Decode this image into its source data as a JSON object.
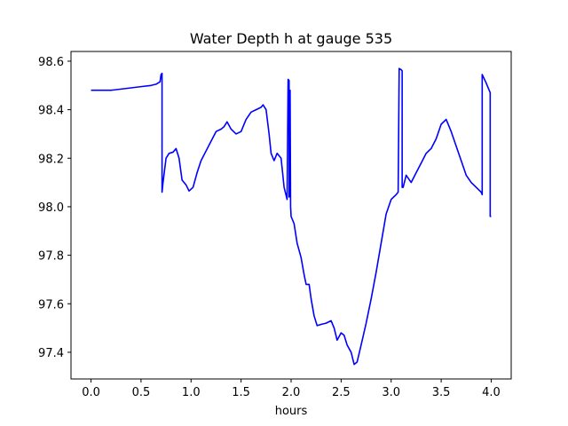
{
  "chart_data": {
    "type": "line",
    "title": "Water Depth h at gauge 535",
    "xlabel": "hours",
    "ylabel": "",
    "xlim": [
      -0.2,
      4.2
    ],
    "ylim": [
      97.29,
      98.64
    ],
    "xticks": [
      0.0,
      0.5,
      1.0,
      1.5,
      2.0,
      2.5,
      3.0,
      3.5,
      4.0
    ],
    "xtick_labels": [
      "0.0",
      "0.5",
      "1.0",
      "1.5",
      "2.0",
      "2.5",
      "3.0",
      "3.5",
      "4.0"
    ],
    "yticks": [
      97.4,
      97.6,
      97.8,
      98.0,
      98.2,
      98.4,
      98.6
    ],
    "ytick_labels": [
      "97.4",
      "97.6",
      "97.8",
      "98.0",
      "98.2",
      "98.4",
      "98.6"
    ],
    "grid": false,
    "legend": "none",
    "series": [
      {
        "color": "#0000ff",
        "x": [
          0.0,
          0.1,
          0.2,
          0.3,
          0.4,
          0.5,
          0.6,
          0.65,
          0.69,
          0.7,
          0.71,
          0.71,
          0.72,
          0.75,
          0.78,
          0.82,
          0.85,
          0.88,
          0.91,
          0.95,
          0.98,
          1.02,
          1.06,
          1.1,
          1.15,
          1.2,
          1.25,
          1.3,
          1.33,
          1.36,
          1.4,
          1.45,
          1.5,
          1.55,
          1.6,
          1.65,
          1.7,
          1.72,
          1.75,
          1.78,
          1.8,
          1.83,
          1.86,
          1.9,
          1.93,
          1.96,
          1.97,
          1.98,
          1.98,
          1.99,
          1.99,
          1.995,
          2.0,
          2.03,
          2.06,
          2.1,
          2.13,
          2.15,
          2.18,
          2.2,
          2.23,
          2.26,
          2.3,
          2.35,
          2.4,
          2.43,
          2.46,
          2.5,
          2.53,
          2.56,
          2.6,
          2.63,
          2.66,
          2.7,
          2.75,
          2.8,
          2.85,
          2.9,
          2.95,
          3.0,
          3.05,
          3.07,
          3.08,
          3.08,
          3.1,
          3.11,
          3.11,
          3.12,
          3.15,
          3.2,
          3.25,
          3.3,
          3.35,
          3.4,
          3.45,
          3.5,
          3.55,
          3.6,
          3.65,
          3.7,
          3.75,
          3.8,
          3.85,
          3.9,
          3.91,
          3.91,
          3.95,
          3.99,
          3.99,
          4.0
        ],
        "y": [
          98.48,
          98.48,
          98.48,
          98.485,
          98.49,
          98.495,
          98.5,
          98.505,
          98.515,
          98.545,
          98.55,
          98.06,
          98.1,
          98.2,
          98.22,
          98.225,
          98.24,
          98.2,
          98.11,
          98.09,
          98.065,
          98.08,
          98.14,
          98.19,
          98.23,
          98.27,
          98.31,
          98.32,
          98.33,
          98.35,
          98.32,
          98.3,
          98.31,
          98.36,
          98.39,
          98.4,
          98.41,
          98.42,
          98.4,
          98.3,
          98.22,
          98.19,
          98.22,
          98.2,
          98.08,
          98.03,
          98.525,
          98.52,
          98.04,
          98.05,
          98.48,
          98.0,
          97.96,
          97.93,
          97.85,
          97.79,
          97.72,
          97.68,
          97.68,
          97.62,
          97.55,
          97.51,
          97.515,
          97.52,
          97.53,
          97.5,
          97.45,
          97.48,
          97.47,
          97.43,
          97.4,
          97.35,
          97.36,
          97.43,
          97.52,
          97.62,
          97.73,
          97.85,
          97.97,
          98.03,
          98.05,
          98.06,
          98.56,
          98.57,
          98.565,
          98.56,
          98.08,
          98.08,
          98.13,
          98.1,
          98.14,
          98.18,
          98.22,
          98.24,
          98.28,
          98.34,
          98.36,
          98.31,
          98.25,
          98.19,
          98.13,
          98.1,
          98.08,
          98.06,
          98.05,
          98.545,
          98.51,
          98.47,
          97.96,
          97.96
        ]
      }
    ]
  }
}
